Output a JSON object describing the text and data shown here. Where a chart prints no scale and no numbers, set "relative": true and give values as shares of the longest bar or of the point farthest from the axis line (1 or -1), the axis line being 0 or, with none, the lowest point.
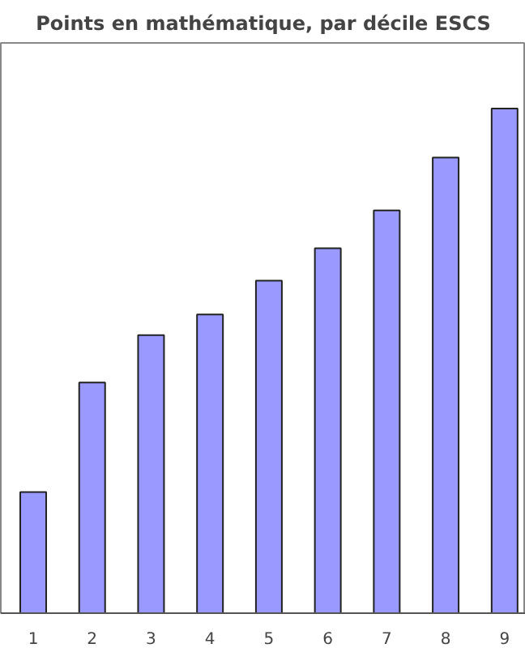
{
  "chart_data": {
    "type": "bar",
    "title": "Points en mathématique, par décile ESCS",
    "categories": [
      "1",
      "2",
      "3",
      "4",
      "5",
      "6",
      "7",
      "8",
      "9"
    ],
    "relative": true,
    "values": [
      0.24,
      0.457,
      0.551,
      0.592,
      0.659,
      0.723,
      0.798,
      0.903,
      1
    ],
    "color": "#9999ff"
  }
}
